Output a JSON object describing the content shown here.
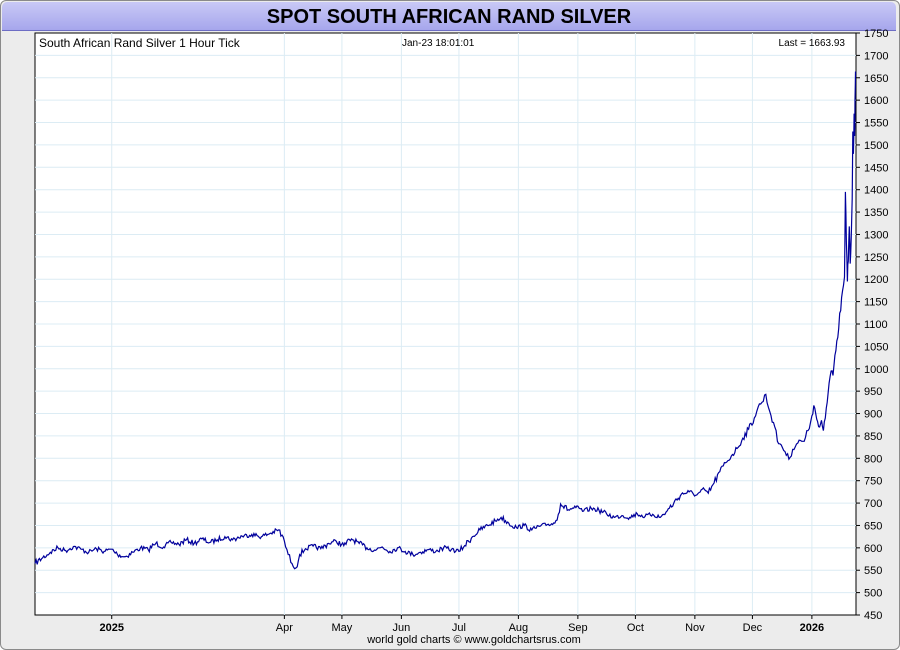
{
  "page": {
    "title": "SPOT SOUTH AFRICAN RAND SILVER",
    "footer": "world gold charts © www.goldchartsrus.com"
  },
  "chart_data": {
    "type": "line",
    "subtitle": "South African Rand Silver 1 Hour Tick",
    "timestamp": "Jan-23  18:01:01",
    "last_label": "Last = 1663.93",
    "last_value": 1663.93,
    "ylim": [
      450,
      1750
    ],
    "y_ticks": [
      450,
      500,
      550,
      600,
      650,
      700,
      750,
      800,
      850,
      900,
      950,
      1000,
      1050,
      1100,
      1150,
      1200,
      1250,
      1300,
      1350,
      1400,
      1450,
      1500,
      1550,
      1600,
      1650,
      1700,
      1750
    ],
    "xlim": [
      "2024-11-22",
      "2026-01-23"
    ],
    "x_ticks": [
      {
        "label": "2025",
        "date": "2025-01-01"
      },
      {
        "label": "Apr",
        "date": "2025-04-01"
      },
      {
        "label": "May",
        "date": "2025-05-01"
      },
      {
        "label": "Jun",
        "date": "2025-06-01"
      },
      {
        "label": "Jul",
        "date": "2025-07-01"
      },
      {
        "label": "Aug",
        "date": "2025-08-01"
      },
      {
        "label": "Sep",
        "date": "2025-09-01"
      },
      {
        "label": "Oct",
        "date": "2025-10-01"
      },
      {
        "label": "Nov",
        "date": "2025-11-01"
      },
      {
        "label": "Dec",
        "date": "2025-12-01"
      },
      {
        "label": "2026",
        "date": "2026-01-01"
      }
    ],
    "grid": true,
    "line_color": "#00009c",
    "series": [
      {
        "points": [
          [
            "2024-11-22",
            565
          ],
          [
            "2024-11-26",
            578
          ],
          [
            "2024-11-30",
            590
          ],
          [
            "2024-12-04",
            600
          ],
          [
            "2024-12-08",
            594
          ],
          [
            "2024-12-12",
            603
          ],
          [
            "2024-12-16",
            597
          ],
          [
            "2024-12-20",
            590
          ],
          [
            "2024-12-24",
            598
          ],
          [
            "2024-12-28",
            592
          ],
          [
            "2025-01-01",
            597
          ],
          [
            "2025-01-04",
            585
          ],
          [
            "2025-01-08",
            580
          ],
          [
            "2025-01-12",
            590
          ],
          [
            "2025-01-16",
            600
          ],
          [
            "2025-01-20",
            596
          ],
          [
            "2025-01-24",
            610
          ],
          [
            "2025-01-28",
            602
          ],
          [
            "2025-02-01",
            612
          ],
          [
            "2025-02-05",
            608
          ],
          [
            "2025-02-09",
            618
          ],
          [
            "2025-02-13",
            610
          ],
          [
            "2025-02-17",
            620
          ],
          [
            "2025-02-21",
            612
          ],
          [
            "2025-02-25",
            618
          ],
          [
            "2025-03-01",
            625
          ],
          [
            "2025-03-05",
            618
          ],
          [
            "2025-03-10",
            626
          ],
          [
            "2025-03-15",
            630
          ],
          [
            "2025-03-20",
            625
          ],
          [
            "2025-03-25",
            633
          ],
          [
            "2025-03-29",
            640
          ],
          [
            "2025-04-01",
            615
          ],
          [
            "2025-04-03",
            585
          ],
          [
            "2025-04-05",
            565
          ],
          [
            "2025-04-07",
            555
          ],
          [
            "2025-04-09",
            585
          ],
          [
            "2025-04-12",
            598
          ],
          [
            "2025-04-16",
            604
          ],
          [
            "2025-04-20",
            598
          ],
          [
            "2025-04-24",
            610
          ],
          [
            "2025-04-28",
            615
          ],
          [
            "2025-05-02",
            605
          ],
          [
            "2025-05-06",
            620
          ],
          [
            "2025-05-10",
            610
          ],
          [
            "2025-05-14",
            600
          ],
          [
            "2025-05-18",
            595
          ],
          [
            "2025-05-22",
            602
          ],
          [
            "2025-05-26",
            592
          ],
          [
            "2025-05-30",
            600
          ],
          [
            "2025-06-03",
            592
          ],
          [
            "2025-06-07",
            585
          ],
          [
            "2025-06-11",
            590
          ],
          [
            "2025-06-15",
            596
          ],
          [
            "2025-06-19",
            592
          ],
          [
            "2025-06-23",
            600
          ],
          [
            "2025-06-27",
            596
          ],
          [
            "2025-07-01",
            592
          ],
          [
            "2025-07-04",
            605
          ],
          [
            "2025-07-08",
            625
          ],
          [
            "2025-07-12",
            640
          ],
          [
            "2025-07-16",
            650
          ],
          [
            "2025-07-20",
            660
          ],
          [
            "2025-07-23",
            668
          ],
          [
            "2025-07-27",
            655
          ],
          [
            "2025-07-31",
            645
          ],
          [
            "2025-08-04",
            650
          ],
          [
            "2025-08-08",
            640
          ],
          [
            "2025-08-12",
            648
          ],
          [
            "2025-08-16",
            652
          ],
          [
            "2025-08-20",
            655
          ],
          [
            "2025-08-23",
            698
          ],
          [
            "2025-08-27",
            685
          ],
          [
            "2025-08-31",
            690
          ],
          [
            "2025-09-04",
            682
          ],
          [
            "2025-09-08",
            688
          ],
          [
            "2025-09-12",
            684
          ],
          [
            "2025-09-16",
            676
          ],
          [
            "2025-09-20",
            668
          ],
          [
            "2025-09-24",
            672
          ],
          [
            "2025-09-28",
            668
          ],
          [
            "2025-10-02",
            676
          ],
          [
            "2025-10-06",
            670
          ],
          [
            "2025-10-10",
            675
          ],
          [
            "2025-10-14",
            668
          ],
          [
            "2025-10-17",
            680
          ],
          [
            "2025-10-21",
            700
          ],
          [
            "2025-10-25",
            720
          ],
          [
            "2025-10-29",
            725
          ],
          [
            "2025-11-02",
            718
          ],
          [
            "2025-11-06",
            730
          ],
          [
            "2025-11-08",
            722
          ],
          [
            "2025-11-11",
            745
          ],
          [
            "2025-11-14",
            770
          ],
          [
            "2025-11-17",
            790
          ],
          [
            "2025-11-20",
            805
          ],
          [
            "2025-11-23",
            822
          ],
          [
            "2025-11-26",
            845
          ],
          [
            "2025-11-29",
            865
          ],
          [
            "2025-12-02",
            890
          ],
          [
            "2025-12-04",
            915
          ],
          [
            "2025-12-06",
            925
          ],
          [
            "2025-12-08",
            943
          ],
          [
            "2025-12-10",
            905
          ],
          [
            "2025-12-12",
            880
          ],
          [
            "2025-12-14",
            838
          ],
          [
            "2025-12-16",
            830
          ],
          [
            "2025-12-18",
            815
          ],
          [
            "2025-12-20",
            798
          ],
          [
            "2025-12-22",
            820
          ],
          [
            "2025-12-24",
            832
          ],
          [
            "2025-12-26",
            840
          ],
          [
            "2025-12-28",
            838
          ],
          [
            "2025-12-30",
            862
          ],
          [
            "2026-01-01",
            895
          ],
          [
            "2026-01-02",
            918
          ],
          [
            "2026-01-03",
            900
          ],
          [
            "2026-01-04",
            882
          ],
          [
            "2026-01-05",
            870
          ],
          [
            "2026-01-06",
            885
          ],
          [
            "2026-01-07",
            862
          ],
          [
            "2026-01-08",
            890
          ],
          [
            "2026-01-09",
            925
          ],
          [
            "2026-01-10",
            968
          ],
          [
            "2026-01-11",
            995
          ],
          [
            "2026-01-12",
            985
          ],
          [
            "2026-01-13",
            1030
          ],
          [
            "2026-01-14",
            1062
          ],
          [
            "2026-01-15",
            1090
          ],
          [
            "2026-01-16",
            1130
          ],
          [
            "2026-01-17",
            1175
          ],
          [
            "2026-01-18",
            1205
          ],
          [
            "2026-01-18T12",
            1395
          ],
          [
            "2026-01-19",
            1280
          ],
          [
            "2026-01-19T12",
            1195
          ],
          [
            "2026-01-20",
            1240
          ],
          [
            "2026-01-20T12",
            1318
          ],
          [
            "2026-01-21",
            1235
          ],
          [
            "2026-01-21T12",
            1290
          ],
          [
            "2026-01-22",
            1380
          ],
          [
            "2026-01-22T08",
            1530
          ],
          [
            "2026-01-22T16",
            1480
          ],
          [
            "2026-01-23",
            1570
          ],
          [
            "2026-01-23T06",
            1520
          ],
          [
            "2026-01-23T12",
            1600
          ],
          [
            "2026-01-23T18",
            1663.93
          ]
        ]
      }
    ]
  }
}
